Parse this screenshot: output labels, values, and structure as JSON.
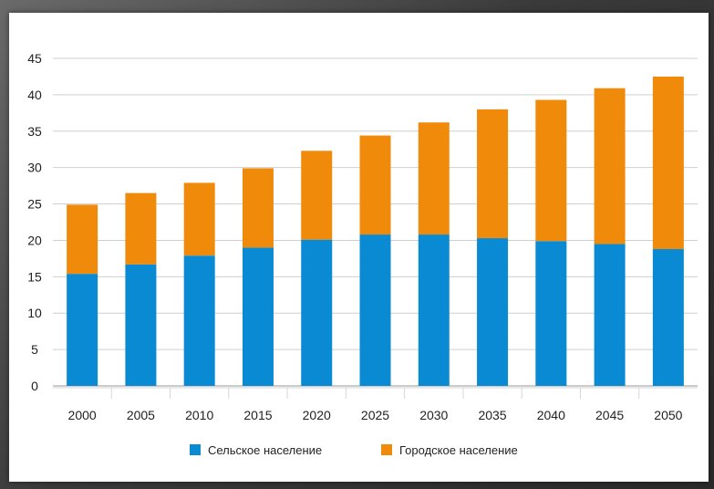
{
  "chart_data": {
    "type": "bar",
    "stacked": true,
    "title": "",
    "xlabel": "",
    "ylabel": "",
    "ylim": [
      0,
      45
    ],
    "yticks": [
      0,
      5,
      10,
      15,
      20,
      25,
      30,
      35,
      40,
      45
    ],
    "yticks_text": [
      "0",
      "5",
      "10",
      "15",
      "20",
      "25",
      "30",
      "35",
      "40",
      "45"
    ],
    "categories": [
      "2000",
      "2005",
      "2010",
      "2015",
      "2020",
      "2025",
      "2030",
      "2035",
      "2040",
      "2045",
      "2050"
    ],
    "series": [
      {
        "name": "Сельское население",
        "color": "#0a8ad2",
        "values": [
          15.4,
          16.7,
          17.9,
          19.0,
          20.1,
          20.8,
          20.8,
          20.3,
          19.9,
          19.5,
          18.8
        ]
      },
      {
        "name": "Городское население",
        "color": "#f08a0a",
        "values": [
          9.5,
          9.8,
          10.0,
          10.9,
          12.2,
          13.6,
          15.4,
          17.7,
          19.4,
          21.4,
          23.7
        ]
      }
    ],
    "grid": true,
    "legend": "bottom"
  }
}
